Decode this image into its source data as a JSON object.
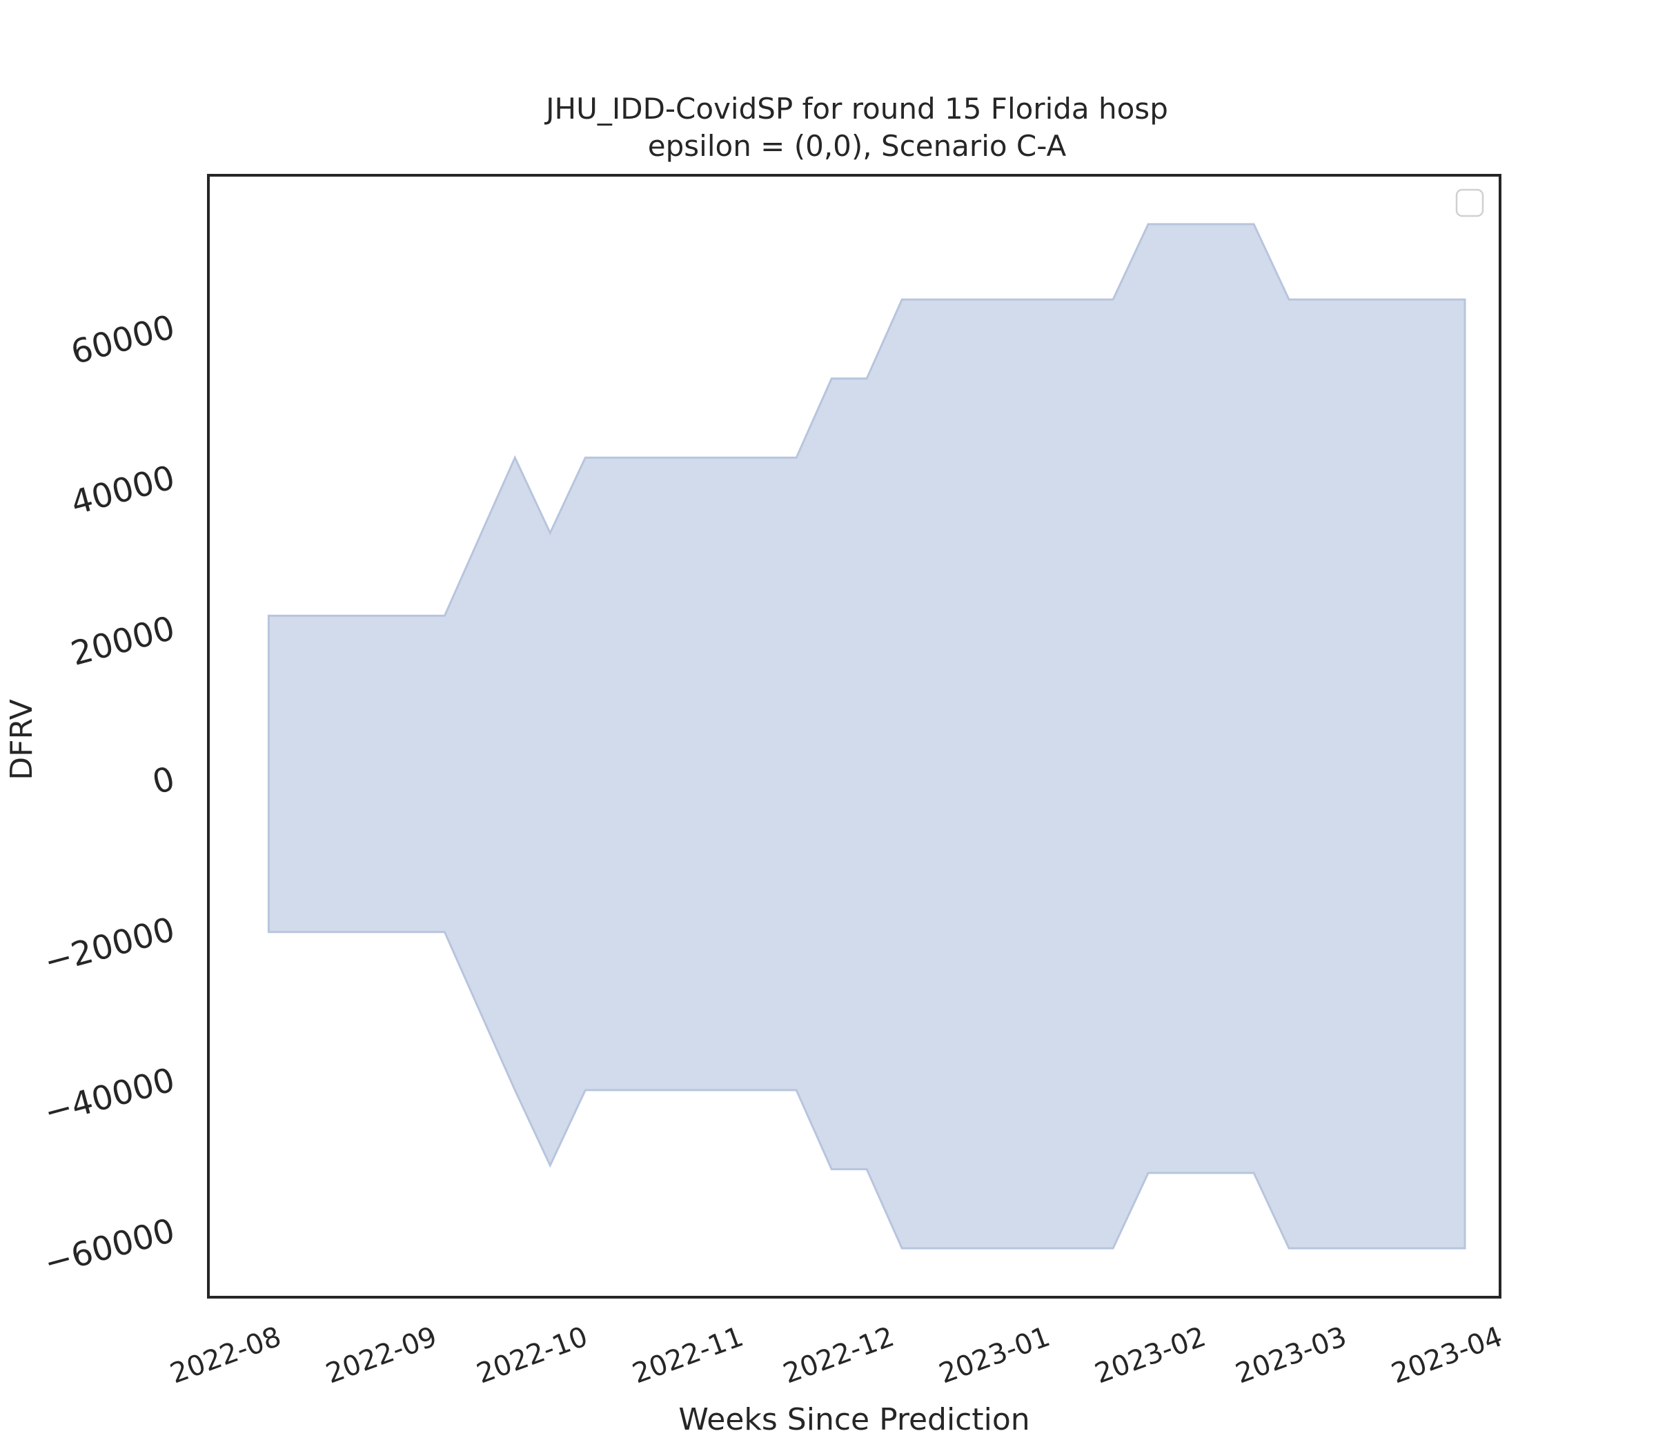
{
  "chart_data": {
    "type": "area",
    "title": "JHU_IDD-CovidSP for round 15 Florida hosp",
    "subtitle": "epsilon = (0,0), Scenario C-A",
    "xlabel": "Weeks Since Prediction",
    "ylabel": "DFRV",
    "xlim": [
      "2022-07-18",
      "2023-04-01"
    ],
    "ylim": [
      -69000,
      80000
    ],
    "yticks": [
      -60000,
      -40000,
      -20000,
      0,
      20000,
      40000,
      60000
    ],
    "ytick_labels": [
      "−60000",
      "−40000",
      "−20000",
      "0",
      "20000",
      "40000",
      "60000"
    ],
    "xticks": [
      "2022-08-01",
      "2022-09-01",
      "2022-10-01",
      "2022-11-01",
      "2022-12-01",
      "2023-01-01",
      "2023-02-01",
      "2023-03-01",
      "2023-04-01"
    ],
    "xtick_labels": [
      "2022-08",
      "2022-09",
      "2022-10",
      "2022-11",
      "2022-12",
      "2023-01",
      "2023-02",
      "2023-03",
      "2023-04"
    ],
    "grid": false,
    "legend": {
      "placement": "top-right",
      "entries": []
    },
    "colors": {
      "fill": "#d2dbeb",
      "edge": "#b7c5de",
      "frame": "#262626"
    },
    "series": [
      {
        "x": [
          "2022-07-30",
          "2022-08-06",
          "2022-08-13",
          "2022-08-20",
          "2022-08-27",
          "2022-09-03",
          "2022-09-10",
          "2022-09-17",
          "2022-09-24",
          "2022-10-01",
          "2022-10-08",
          "2022-10-15",
          "2022-10-22",
          "2022-10-29",
          "2022-11-05",
          "2022-11-12",
          "2022-11-19",
          "2022-11-26",
          "2022-12-03",
          "2022-12-10",
          "2022-12-17",
          "2022-12-24",
          "2022-12-31",
          "2023-01-07",
          "2023-01-14",
          "2023-01-21",
          "2023-01-28",
          "2023-02-04",
          "2023-02-11",
          "2023-02-18",
          "2023-02-25",
          "2023-03-04",
          "2023-03-11",
          "2023-03-18",
          "2023-03-25"
        ],
        "upper": [
          21500,
          21500,
          21500,
          21500,
          21500,
          21500,
          32000,
          42500,
          32500,
          42500,
          42500,
          42500,
          42500,
          42500,
          42500,
          42500,
          53000,
          53000,
          63500,
          63500,
          63500,
          63500,
          63500,
          63500,
          63500,
          73500,
          73500,
          73500,
          73500,
          63500,
          63500,
          63500,
          63500,
          63500,
          63500
        ],
        "lower": [
          -20500,
          -20500,
          -20500,
          -20500,
          -20500,
          -20500,
          -31000,
          -41500,
          -51500,
          -41500,
          -41500,
          -41500,
          -41500,
          -41500,
          -41500,
          -41500,
          -52000,
          -52000,
          -62500,
          -62500,
          -62500,
          -62500,
          -62500,
          -62500,
          -62500,
          -52500,
          -52500,
          -52500,
          -52500,
          -62500,
          -62500,
          -62500,
          -62500,
          -62500,
          -62500
        ]
      }
    ]
  }
}
